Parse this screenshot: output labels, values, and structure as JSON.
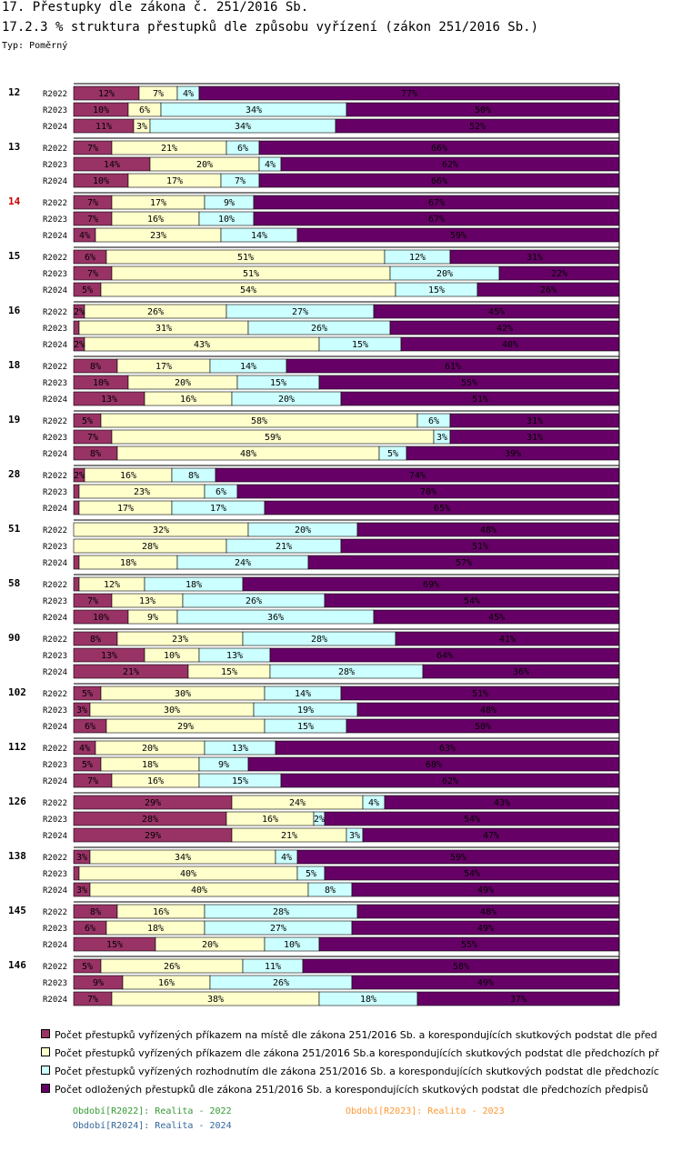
{
  "header": {
    "title": "17. Přestupky dle zákona č. 251/2016 Sb.",
    "subtitle": "17.2.3 % struktura přestupků dle způsobu vyřízení (zákon 251/2016 Sb.)",
    "type_label": "Typ: Poměrný"
  },
  "legend": {
    "items": [
      {
        "label": "Počet přestupků vyřízených příkazem na místě dle zákona 251/2016 Sb. a korespondujících skutkových podstat dle před",
        "color": "#993366"
      },
      {
        "label": "Počet přestupků vyřízených příkazem dle zákona 251/2016 Sb.a korespondujících skutkových podstat dle předchozích př",
        "color": "#FFFFCC"
      },
      {
        "label": "Počet přestupků vyřízených rozhodnutím dle zákona 251/2016 Sb. a korespondujících skutkových podstat dle předchozíc",
        "color": "#CCFFFF"
      },
      {
        "label": "Počet odložených přestupků dle zákona 251/2016 Sb. a korespondujících skutkových podstat dle předchozích předpisů",
        "color": "#660066"
      }
    ],
    "periods": [
      {
        "label": "Období[R2022]: Realita - 2022",
        "color": "#339933"
      },
      {
        "label": "Období[R2023]: Realita - 2023",
        "color": "#FF9933"
      },
      {
        "label": "Období[R2024]: Realita - 2024",
        "color": "#336699"
      }
    ]
  },
  "chart_data": {
    "type": "bar",
    "orientation": "horizontal",
    "stacked": true,
    "normalized": true,
    "title": "17.2.3 % struktura přestupků dle způsobu vyřízení (zákon 251/2016 Sb.)",
    "xlim": [
      0,
      100
    ],
    "series_names": [
      "Počet přestupků vyřízených příkazem na místě dle zákona 251/2016 Sb. a korespondujících skutkových podstat dle před",
      "Počet přestupků vyřízených příkazem dle zákona 251/2016 Sb.a korespondujících skutkových podstat dle předchozích př",
      "Počet přestupků vyřízených rozhodnutím dle zákona 251/2016 Sb. a korespondujících skutkových podstat dle předchozíc",
      "Počet odložených přestupků dle zákona 251/2016 Sb. a korespondujících skutkových podstat dle předchozích předpisů"
    ],
    "colors": [
      "#993366",
      "#FFFFCC",
      "#CCFFFF",
      "#660066"
    ],
    "label_color": "#000000",
    "highlight_color": "#CC0000",
    "groups": [
      {
        "label": "12",
        "highlight": false,
        "rows": [
          {
            "period": "R2022",
            "values": [
              12,
              7,
              4,
              77
            ],
            "labels": [
              "12%",
              "7%",
              "4%",
              "77%"
            ]
          },
          {
            "period": "R2023",
            "values": [
              10,
              6,
              34,
              50
            ],
            "labels": [
              "10%",
              "6%",
              "34%",
              "50%"
            ]
          },
          {
            "period": "R2024",
            "values": [
              11,
              3,
              34,
              52
            ],
            "labels": [
              "11%",
              "3%",
              "34%",
              "52%"
            ]
          }
        ]
      },
      {
        "label": "13",
        "highlight": false,
        "rows": [
          {
            "period": "R2022",
            "values": [
              7,
              21,
              6,
              66
            ],
            "labels": [
              "7%",
              "21%",
              "6%",
              "66%"
            ]
          },
          {
            "period": "R2023",
            "values": [
              14,
              20,
              4,
              62
            ],
            "labels": [
              "14%",
              "20%",
              "4%",
              "62%"
            ]
          },
          {
            "period": "R2024",
            "values": [
              10,
              17,
              7,
              66
            ],
            "labels": [
              "10%",
              "17%",
              "7%",
              "66%"
            ]
          }
        ]
      },
      {
        "label": "14",
        "highlight": true,
        "rows": [
          {
            "period": "R2022",
            "values": [
              7,
              17,
              9,
              67
            ],
            "labels": [
              "7%",
              "17%",
              "9%",
              "67%"
            ]
          },
          {
            "period": "R2023",
            "values": [
              7,
              16,
              10,
              67
            ],
            "labels": [
              "7%",
              "16%",
              "10%",
              "67%"
            ]
          },
          {
            "period": "R2024",
            "values": [
              4,
              23,
              14,
              59
            ],
            "labels": [
              "4%",
              "23%",
              "14%",
              "59%"
            ]
          }
        ]
      },
      {
        "label": "15",
        "highlight": false,
        "rows": [
          {
            "period": "R2022",
            "values": [
              6,
              51,
              12,
              31
            ],
            "labels": [
              "6%",
              "51%",
              "12%",
              "31%"
            ]
          },
          {
            "period": "R2023",
            "values": [
              7,
              51,
              20,
              22
            ],
            "labels": [
              "7%",
              "51%",
              "20%",
              "22%"
            ]
          },
          {
            "period": "R2024",
            "values": [
              5,
              54,
              15,
              26
            ],
            "labels": [
              "5%",
              "54%",
              "15%",
              "26%"
            ]
          }
        ]
      },
      {
        "label": "16",
        "highlight": false,
        "rows": [
          {
            "period": "R2022",
            "values": [
              2,
              26,
              27,
              45
            ],
            "labels": [
              "2%",
              "26%",
              "27%",
              "45%"
            ]
          },
          {
            "period": "R2023",
            "values": [
              1,
              31,
              26,
              42
            ],
            "labels": [
              "",
              "31%",
              "26%",
              "42%"
            ]
          },
          {
            "period": "R2024",
            "values": [
              2,
              43,
              15,
              40
            ],
            "labels": [
              "2%",
              "43%",
              "15%",
              "40%"
            ]
          }
        ]
      },
      {
        "label": "18",
        "highlight": false,
        "rows": [
          {
            "period": "R2022",
            "values": [
              8,
              17,
              14,
              61
            ],
            "labels": [
              "8%",
              "17%",
              "14%",
              "61%"
            ]
          },
          {
            "period": "R2023",
            "values": [
              10,
              20,
              15,
              55
            ],
            "labels": [
              "10%",
              "20%",
              "15%",
              "55%"
            ]
          },
          {
            "period": "R2024",
            "values": [
              13,
              16,
              20,
              51
            ],
            "labels": [
              "13%",
              "16%",
              "20%",
              "51%"
            ]
          }
        ]
      },
      {
        "label": "19",
        "highlight": false,
        "rows": [
          {
            "period": "R2022",
            "values": [
              5,
              58,
              6,
              31
            ],
            "labels": [
              "5%",
              "58%",
              "6%",
              "31%"
            ]
          },
          {
            "period": "R2023",
            "values": [
              7,
              59,
              3,
              31
            ],
            "labels": [
              "7%",
              "59%",
              "3%",
              "31%"
            ]
          },
          {
            "period": "R2024",
            "values": [
              8,
              48,
              5,
              39
            ],
            "labels": [
              "8%",
              "48%",
              "5%",
              "39%"
            ]
          }
        ]
      },
      {
        "label": "28",
        "highlight": false,
        "rows": [
          {
            "period": "R2022",
            "values": [
              2,
              16,
              8,
              74
            ],
            "labels": [
              "2%",
              "16%",
              "8%",
              "74%"
            ]
          },
          {
            "period": "R2023",
            "values": [
              1,
              23,
              6,
              70
            ],
            "labels": [
              "",
              "23%",
              "6%",
              "70%"
            ]
          },
          {
            "period": "R2024",
            "values": [
              1,
              17,
              17,
              65
            ],
            "labels": [
              "",
              "17%",
              "17%",
              "65%"
            ]
          }
        ]
      },
      {
        "label": "51",
        "highlight": false,
        "rows": [
          {
            "period": "R2022",
            "values": [
              0,
              32,
              20,
              48
            ],
            "labels": [
              "",
              "32%",
              "20%",
              "48%"
            ]
          },
          {
            "period": "R2023",
            "values": [
              0,
              28,
              21,
              51
            ],
            "labels": [
              "",
              "28%",
              "21%",
              "51%"
            ]
          },
          {
            "period": "R2024",
            "values": [
              1,
              18,
              24,
              57
            ],
            "labels": [
              "",
              "18%",
              "24%",
              "57%"
            ]
          }
        ]
      },
      {
        "label": "58",
        "highlight": false,
        "rows": [
          {
            "period": "R2022",
            "values": [
              1,
              12,
              18,
              69
            ],
            "labels": [
              "",
              "12%",
              "18%",
              "69%"
            ]
          },
          {
            "period": "R2023",
            "values": [
              7,
              13,
              26,
              54
            ],
            "labels": [
              "7%",
              "13%",
              "26%",
              "54%"
            ]
          },
          {
            "period": "R2024",
            "values": [
              10,
              9,
              36,
              45
            ],
            "labels": [
              "10%",
              "9%",
              "36%",
              "45%"
            ]
          }
        ]
      },
      {
        "label": "90",
        "highlight": false,
        "rows": [
          {
            "period": "R2022",
            "values": [
              8,
              23,
              28,
              41
            ],
            "labels": [
              "8%",
              "23%",
              "28%",
              "41%"
            ]
          },
          {
            "period": "R2023",
            "values": [
              13,
              10,
              13,
              64
            ],
            "labels": [
              "13%",
              "10%",
              "13%",
              "64%"
            ]
          },
          {
            "period": "R2024",
            "values": [
              21,
              15,
              28,
              36
            ],
            "labels": [
              "21%",
              "15%",
              "28%",
              "36%"
            ]
          }
        ]
      },
      {
        "label": "102",
        "highlight": false,
        "rows": [
          {
            "period": "R2022",
            "values": [
              5,
              30,
              14,
              51
            ],
            "labels": [
              "5%",
              "30%",
              "14%",
              "51%"
            ]
          },
          {
            "period": "R2023",
            "values": [
              3,
              30,
              19,
              48
            ],
            "labels": [
              "3%",
              "30%",
              "19%",
              "48%"
            ]
          },
          {
            "period": "R2024",
            "values": [
              6,
              29,
              15,
              50
            ],
            "labels": [
              "6%",
              "29%",
              "15%",
              "50%"
            ]
          }
        ]
      },
      {
        "label": "112",
        "highlight": false,
        "rows": [
          {
            "period": "R2022",
            "values": [
              4,
              20,
              13,
              63
            ],
            "labels": [
              "4%",
              "20%",
              "13%",
              "63%"
            ]
          },
          {
            "period": "R2023",
            "values": [
              5,
              18,
              9,
              68
            ],
            "labels": [
              "5%",
              "18%",
              "9%",
              "68%"
            ]
          },
          {
            "period": "R2024",
            "values": [
              7,
              16,
              15,
              62
            ],
            "labels": [
              "7%",
              "16%",
              "15%",
              "62%"
            ]
          }
        ]
      },
      {
        "label": "126",
        "highlight": false,
        "rows": [
          {
            "period": "R2022",
            "values": [
              29,
              24,
              4,
              43
            ],
            "labels": [
              "29%",
              "24%",
              "4%",
              "43%"
            ]
          },
          {
            "period": "R2023",
            "values": [
              28,
              16,
              2,
              54
            ],
            "labels": [
              "28%",
              "16%",
              "2%",
              "54%"
            ]
          },
          {
            "period": "R2024",
            "values": [
              29,
              21,
              3,
              47
            ],
            "labels": [
              "29%",
              "21%",
              "3%",
              "47%"
            ]
          }
        ]
      },
      {
        "label": "138",
        "highlight": false,
        "rows": [
          {
            "period": "R2022",
            "values": [
              3,
              34,
              4,
              59
            ],
            "labels": [
              "3%",
              "34%",
              "4%",
              "59%"
            ]
          },
          {
            "period": "R2023",
            "values": [
              1,
              40,
              5,
              54
            ],
            "labels": [
              "",
              "40%",
              "5%",
              "54%"
            ]
          },
          {
            "period": "R2024",
            "values": [
              3,
              40,
              8,
              49
            ],
            "labels": [
              "3%",
              "40%",
              "8%",
              "49%"
            ]
          }
        ]
      },
      {
        "label": "145",
        "highlight": false,
        "rows": [
          {
            "period": "R2022",
            "values": [
              8,
              16,
              28,
              48
            ],
            "labels": [
              "8%",
              "16%",
              "28%",
              "48%"
            ]
          },
          {
            "period": "R2023",
            "values": [
              6,
              18,
              27,
              49
            ],
            "labels": [
              "6%",
              "18%",
              "27%",
              "49%"
            ]
          },
          {
            "period": "R2024",
            "values": [
              15,
              20,
              10,
              55
            ],
            "labels": [
              "15%",
              "20%",
              "10%",
              "55%"
            ]
          }
        ]
      },
      {
        "label": "146",
        "highlight": false,
        "rows": [
          {
            "period": "R2022",
            "values": [
              5,
              26,
              11,
              58
            ],
            "labels": [
              "5%",
              "26%",
              "11%",
              "58%"
            ]
          },
          {
            "period": "R2023",
            "values": [
              9,
              16,
              26,
              49
            ],
            "labels": [
              "9%",
              "16%",
              "26%",
              "49%"
            ]
          },
          {
            "period": "R2024",
            "values": [
              7,
              38,
              18,
              37
            ],
            "labels": [
              "7%",
              "38%",
              "18%",
              "37%"
            ]
          }
        ]
      }
    ]
  }
}
